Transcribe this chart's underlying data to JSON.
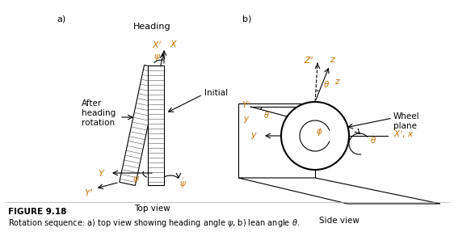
{
  "fig_width": 5.62,
  "fig_height": 3.08,
  "dpi": 100,
  "bg_color": "#ffffff",
  "text_color": "#000000",
  "orange_color": "#c87000",
  "gray_color": "#666666",
  "label_a": "a)",
  "label_b": "b)",
  "heading_label": "Heading",
  "top_view_label": "Top view",
  "side_view_label": "Side view",
  "after_heading_label": "After\nheading\nrotation",
  "initial_label": "Initial",
  "wheel_plane_label": "Wheel\nplane",
  "caption_bold": "FIGURE 9.18",
  "caption_text": "Rotation sequence: a) top view showing heading angle $\\psi$, b) lean angle $\\theta$."
}
